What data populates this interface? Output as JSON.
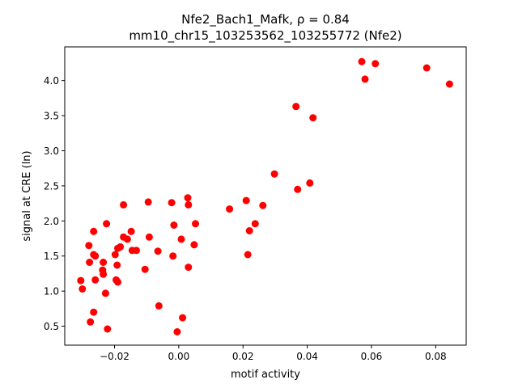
{
  "chart_data": {
    "type": "scatter",
    "title_line1": "Nfe2_Bach1_Mafk, ρ = 0.84",
    "title_line2": "mm10_chr15_103253562_103255772 (Nfe2)",
    "xlabel": "motif activity",
    "ylabel": "signal at CRE (ln)",
    "xlim": [
      -0.0355,
      0.0895
    ],
    "ylim": [
      0.23,
      4.48
    ],
    "xticks": [
      -0.02,
      0.0,
      0.02,
      0.04,
      0.06,
      0.08
    ],
    "xtick_labels": [
      "−0.02",
      "0.00",
      "0.02",
      "0.04",
      "0.06",
      "0.08"
    ],
    "yticks": [
      0.5,
      1.0,
      1.5,
      2.0,
      2.5,
      3.0,
      3.5,
      4.0
    ],
    "ytick_labels": [
      "0.5",
      "1.0",
      "1.5",
      "2.0",
      "2.5",
      "3.0",
      "3.5",
      "4.0"
    ],
    "marker_color": "#ff0000",
    "points": [
      [
        -0.0305,
        1.15
      ],
      [
        -0.03,
        1.03
      ],
      [
        -0.028,
        1.65
      ],
      [
        -0.0278,
        1.41
      ],
      [
        -0.0275,
        0.56
      ],
      [
        -0.0265,
        1.52
      ],
      [
        -0.026,
        1.5
      ],
      [
        -0.0265,
        1.85
      ],
      [
        -0.026,
        1.16
      ],
      [
        -0.0265,
        0.7
      ],
      [
        -0.0235,
        1.41
      ],
      [
        -0.0237,
        1.3
      ],
      [
        -0.0235,
        1.24
      ],
      [
        -0.0228,
        0.97
      ],
      [
        -0.0225,
        1.96
      ],
      [
        -0.0222,
        0.46
      ],
      [
        -0.0198,
        1.52
      ],
      [
        -0.0195,
        1.16
      ],
      [
        -0.0192,
        1.37
      ],
      [
        -0.019,
        1.13
      ],
      [
        -0.019,
        1.61
      ],
      [
        -0.0182,
        1.63
      ],
      [
        -0.0172,
        2.23
      ],
      [
        -0.0172,
        1.77
      ],
      [
        -0.016,
        1.74
      ],
      [
        -0.0148,
        1.85
      ],
      [
        -0.0145,
        1.58
      ],
      [
        -0.0132,
        1.58
      ],
      [
        -0.0105,
        1.31
      ],
      [
        -0.0095,
        2.27
      ],
      [
        -0.0092,
        1.77
      ],
      [
        -0.0065,
        1.57
      ],
      [
        -0.0062,
        0.79
      ],
      [
        -0.0022,
        2.26
      ],
      [
        -0.0018,
        1.5
      ],
      [
        -0.0015,
        1.94
      ],
      [
        -0.0005,
        0.42
      ],
      [
        0.0008,
        1.74
      ],
      [
        0.0012,
        0.62
      ],
      [
        0.0028,
        2.33
      ],
      [
        0.003,
        2.23
      ],
      [
        0.003,
        1.34
      ],
      [
        0.0048,
        1.66
      ],
      [
        0.0052,
        1.96
      ],
      [
        0.0158,
        2.17
      ],
      [
        0.021,
        2.29
      ],
      [
        0.0215,
        1.52
      ],
      [
        0.022,
        1.86
      ],
      [
        0.0238,
        1.96
      ],
      [
        0.0262,
        2.22
      ],
      [
        0.0298,
        2.67
      ],
      [
        0.0365,
        3.63
      ],
      [
        0.037,
        2.45
      ],
      [
        0.0408,
        2.54
      ],
      [
        0.0418,
        3.47
      ],
      [
        0.057,
        4.27
      ],
      [
        0.058,
        4.02
      ],
      [
        0.0612,
        4.24
      ],
      [
        0.0772,
        4.18
      ],
      [
        0.0843,
        3.95
      ]
    ]
  }
}
